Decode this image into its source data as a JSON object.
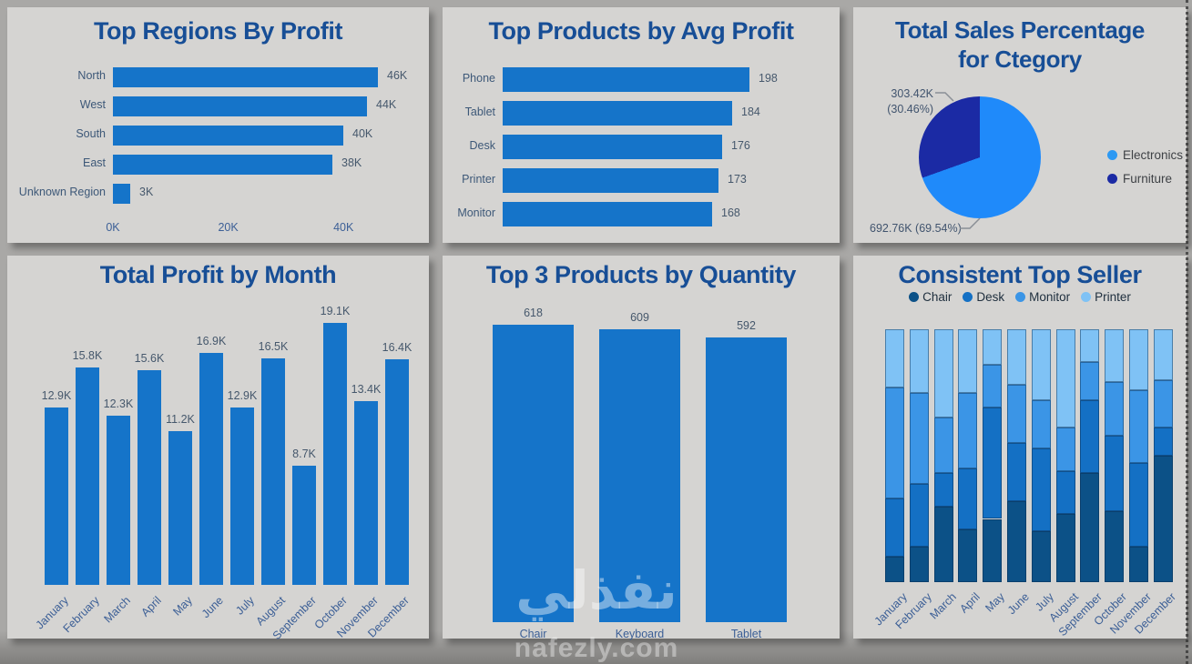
{
  "watermark": {
    "logo_text": "نفذلي",
    "site_text": "nafezly.com"
  },
  "colors": {
    "card_background": "#d5d4d2",
    "page_background": "#a9a8a6",
    "title_text": "#174e96",
    "primary_bar": "#1574c9",
    "pie_electronics": "#1f8afa",
    "pie_furniture": "#1b2aa4",
    "stack_chair": "#0c5187",
    "stack_desk": "#1470c4",
    "stack_monitor": "#3b95e6",
    "stack_printer": "#7fc2f5"
  },
  "chart_data": [
    {
      "id": "regions_profit",
      "type": "bar",
      "orientation": "horizontal",
      "title": "Top Regions By Profit",
      "categories": [
        "North",
        "West",
        "South",
        "East",
        "Unknown Region"
      ],
      "values": [
        46,
        44,
        40,
        38,
        3
      ],
      "value_labels": [
        "46K",
        "44K",
        "40K",
        "38K",
        "3K"
      ],
      "x_ticks": [
        {
          "label": "0K",
          "value": 0
        },
        {
          "label": "20K",
          "value": 20
        },
        {
          "label": "40K",
          "value": 40
        }
      ],
      "xlim": [
        0,
        48
      ],
      "bar_color": "#1574c9",
      "grid": false,
      "value_unit": "K profit"
    },
    {
      "id": "products_avg_profit",
      "type": "bar",
      "orientation": "horizontal",
      "title": "Top Products by Avg Profit",
      "categories": [
        "Phone",
        "Tablet",
        "Desk",
        "Printer",
        "Monitor"
      ],
      "values": [
        198,
        184,
        176,
        173,
        168
      ],
      "value_labels": [
        "198",
        "184",
        "176",
        "173",
        "168"
      ],
      "x_ticks": [],
      "xlim": [
        0,
        210
      ],
      "bar_color": "#1574c9",
      "grid": false
    },
    {
      "id": "sales_percentage_category",
      "type": "pie",
      "title": "Total Sales Percentage for Ctegory",
      "title_lines": [
        "Total Sales Percentage",
        "for Ctegory"
      ],
      "slices": [
        {
          "label": "Electronics",
          "value_display": "692.76K",
          "pct": 69.54,
          "data_label": "692.76K (69.54%)",
          "color": "#1f8afa"
        },
        {
          "label": "Furniture",
          "value_display": "303.42K",
          "pct": 30.46,
          "data_label_lines": [
            "303.42K",
            "(30.46%)"
          ],
          "color": "#1b2aa4"
        }
      ],
      "legend_position": "right"
    },
    {
      "id": "profit_by_month",
      "type": "bar",
      "orientation": "vertical",
      "title": "Total Profit by Month",
      "categories": [
        "January",
        "February",
        "March",
        "April",
        "May",
        "June",
        "July",
        "August",
        "September",
        "October",
        "November",
        "December"
      ],
      "values": [
        12.9,
        15.8,
        12.3,
        15.6,
        11.2,
        16.9,
        12.9,
        16.5,
        8.7,
        19.1,
        13.4,
        16.4
      ],
      "value_labels": [
        "12.9K",
        "15.8K",
        "12.3K",
        "15.6K",
        "11.2K",
        "16.9K",
        "12.9K",
        "16.5K",
        "8.7K",
        "19.1K",
        "13.4K",
        "16.4K"
      ],
      "ylim": [
        0,
        19.1
      ],
      "bar_color": "#1574c9",
      "grid": false,
      "category_labels_rotated": true
    },
    {
      "id": "top3_quantity",
      "type": "bar",
      "orientation": "vertical",
      "title": "Top 3 Products by Quantity",
      "categories": [
        "Chair",
        "Keyboard",
        "Tablet"
      ],
      "values": [
        618,
        609,
        592
      ],
      "value_labels": [
        "618",
        "609",
        "592"
      ],
      "ylim": [
        0,
        650
      ],
      "bar_color": "#1574c9",
      "grid": false,
      "category_labels_rotated": false
    },
    {
      "id": "consistent_top_seller",
      "type": "bar",
      "subtype": "stacked-100pct",
      "title": "Consistent Top Seller",
      "categories": [
        "January",
        "February",
        "March",
        "April",
        "May",
        "June",
        "July",
        "August",
        "September",
        "October",
        "November",
        "December"
      ],
      "series": [
        {
          "name": "Chair",
          "color": "#0c5187",
          "pct_values": [
            10,
            14,
            30,
            21,
            25,
            32,
            20,
            27,
            43,
            28,
            14,
            50
          ]
        },
        {
          "name": "Desk",
          "color": "#1470c4",
          "pct_values": [
            23,
            25,
            13,
            24,
            44,
            23,
            33,
            17,
            29,
            30,
            33,
            11
          ]
        },
        {
          "name": "Monitor",
          "color": "#3b95e6",
          "pct_values": [
            44,
            36,
            22,
            30,
            17,
            23,
            19,
            17,
            15,
            21,
            29,
            19
          ]
        },
        {
          "name": "Printer",
          "color": "#7fc2f5",
          "pct_values": [
            23,
            25,
            35,
            25,
            14,
            22,
            28,
            39,
            13,
            21,
            24,
            20
          ]
        }
      ],
      "legend_position": "top",
      "category_labels_rotated": true
    }
  ]
}
